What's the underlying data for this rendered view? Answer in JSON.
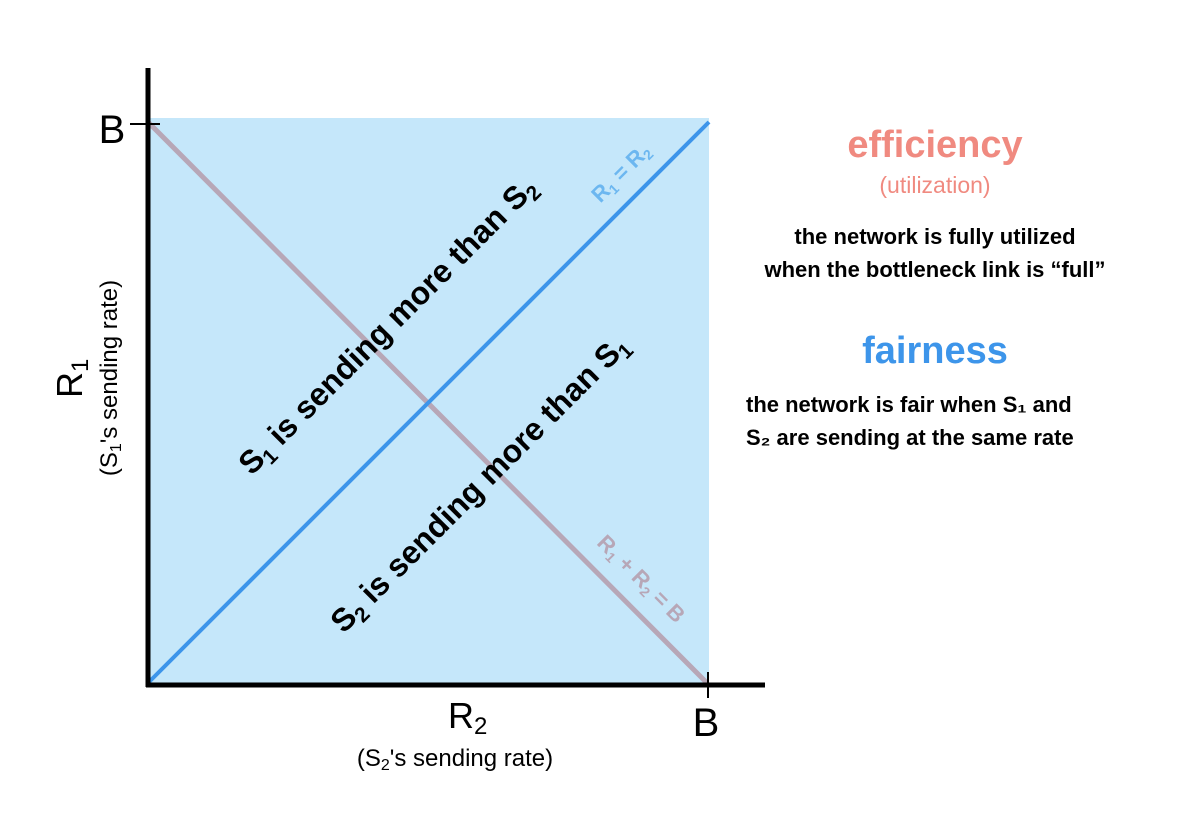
{
  "diagram": {
    "y_axis_label": "R",
    "y_axis_label_sub": "1",
    "y_axis_caption_parts": [
      "(S",
      "1",
      "'s sending rate)"
    ],
    "x_axis_label": "R",
    "x_axis_label_sub": "2",
    "x_axis_caption_parts": [
      "(S",
      "2",
      "'s sending rate)"
    ],
    "y_tick": "B",
    "x_tick": "B",
    "line_equal": {
      "parts": [
        "R",
        "1",
        " = R",
        "2"
      ]
    },
    "line_capacity": {
      "parts": [
        "R",
        "1",
        " + R",
        "2",
        " = B"
      ]
    },
    "region_upper": {
      "parts": [
        "S",
        "1",
        " is sending more than S",
        "2"
      ]
    },
    "region_lower": {
      "parts": [
        "S",
        "2",
        " is sending more than S",
        "1"
      ]
    },
    "colors": {
      "region_fill": "#c5e7fa",
      "equal_line": "#3d95ea",
      "capacity_line": "#b7a7b7",
      "axis": "#000000"
    }
  },
  "efficiency": {
    "title": "efficiency",
    "subtitle": "(utilization)",
    "line1": "the network is fully utilized",
    "line2": "when the bottleneck link is “full”"
  },
  "fairness": {
    "title": "fairness",
    "line1": "the network is fair when S₁ and",
    "line2": "S₂ are sending at the same rate"
  }
}
